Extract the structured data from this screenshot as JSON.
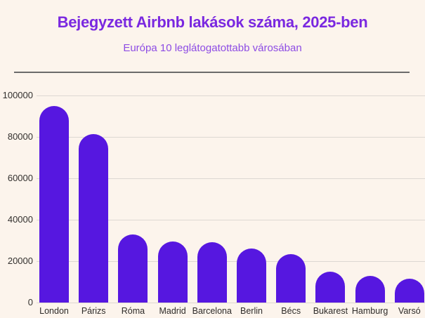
{
  "chart_data": {
    "type": "bar",
    "title": "Bejegyzett Airbnb lakások száma, 2025-ben",
    "subtitle": "Európa 10 leglátogatottabb városában",
    "categories": [
      "London",
      "Párizs",
      "Róma",
      "Madrid",
      "Barcelona",
      "Berlin",
      "Bécs",
      "Bukarest",
      "Hamburg",
      "Varsó"
    ],
    "values": [
      95000,
      81500,
      33000,
      29500,
      29000,
      26000,
      23500,
      15000,
      13000,
      11500
    ],
    "xlabel": "",
    "ylabel": "",
    "ylim": [
      0,
      100000
    ],
    "yticks": [
      0,
      20000,
      40000,
      60000,
      80000,
      100000
    ],
    "ytick_labels": [
      "0",
      "20000",
      "40000",
      "60000",
      "80000",
      "100000"
    ],
    "grid": true,
    "legend": false,
    "colors": {
      "background": "#fcf4ec",
      "bar": "#5617e0",
      "title": "#7a28e0",
      "subtitle": "#8d4ce4",
      "gridline": "#ddd8d2",
      "axis_text": "#33302e",
      "separator": "#6b6b6b"
    }
  }
}
